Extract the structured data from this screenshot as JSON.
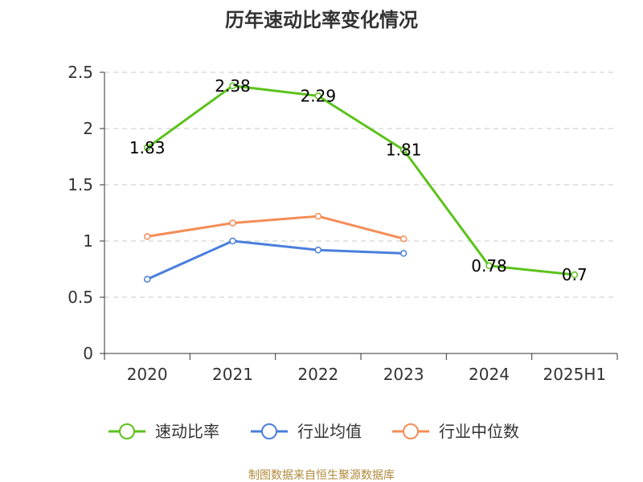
{
  "chart_data": {
    "type": "line",
    "title": "历年速动比率变化情况",
    "categories": [
      "2020",
      "2021",
      "2022",
      "2023",
      "2024",
      "2025H1"
    ],
    "y_ticks": [
      "0",
      "0.5",
      "1",
      "1.5",
      "2",
      "2.5"
    ],
    "ylim": [
      0,
      2.5
    ],
    "grid": true,
    "legend_position": "bottom",
    "series": [
      {
        "name": "速动比率",
        "color": "#5cc21c",
        "values": [
          1.83,
          2.38,
          2.29,
          1.81,
          0.78,
          0.7
        ],
        "labels": [
          "1.83",
          "2.38",
          "2.29",
          "1.81",
          "0.78",
          "0.7"
        ]
      },
      {
        "name": "行业均值",
        "color": "#4a7fdc",
        "values": [
          0.66,
          1.0,
          0.92,
          0.89,
          null,
          null
        ]
      },
      {
        "name": "行业中位数",
        "color": "#f58d56",
        "values": [
          1.04,
          1.16,
          1.22,
          1.02,
          null,
          null
        ]
      }
    ],
    "source": "制图数据来自恒生聚源数据库"
  }
}
